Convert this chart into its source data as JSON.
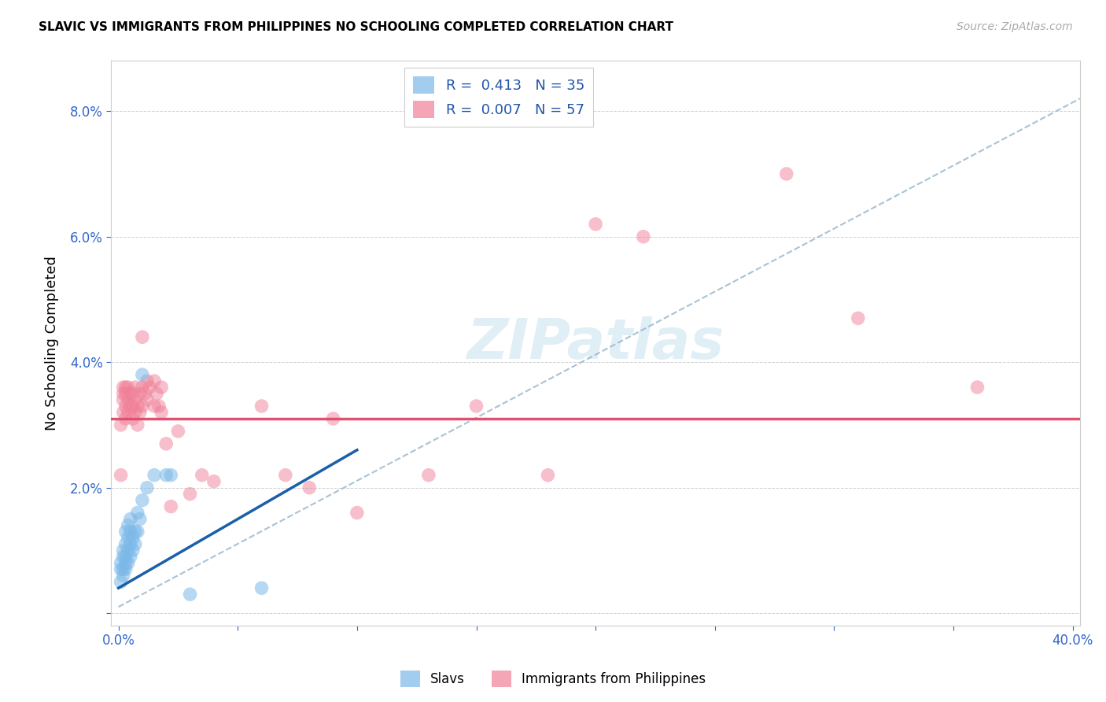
{
  "title": "SLAVIC VS IMMIGRANTS FROM PHILIPPINES NO SCHOOLING COMPLETED CORRELATION CHART",
  "source": "Source: ZipAtlas.com",
  "ylabel": "No Schooling Completed",
  "watermark": "ZIPatlas",
  "xlim": [
    -0.003,
    0.403
  ],
  "ylim": [
    -0.002,
    0.088
  ],
  "slavs_color": "#7bb8e8",
  "philippines_color": "#f08098",
  "trendline_slavs_color": "#1a5faa",
  "trendline_philippines_color": "#e05070",
  "trendline_dashed_color": "#9ab8cc",
  "slavs_scatter": [
    [
      0.001,
      0.005
    ],
    [
      0.001,
      0.007
    ],
    [
      0.001,
      0.008
    ],
    [
      0.002,
      0.006
    ],
    [
      0.002,
      0.007
    ],
    [
      0.002,
      0.009
    ],
    [
      0.002,
      0.01
    ],
    [
      0.003,
      0.007
    ],
    [
      0.003,
      0.008
    ],
    [
      0.003,
      0.009
    ],
    [
      0.003,
      0.011
    ],
    [
      0.003,
      0.013
    ],
    [
      0.004,
      0.008
    ],
    [
      0.004,
      0.01
    ],
    [
      0.004,
      0.012
    ],
    [
      0.004,
      0.014
    ],
    [
      0.005,
      0.009
    ],
    [
      0.005,
      0.011
    ],
    [
      0.005,
      0.013
    ],
    [
      0.005,
      0.015
    ],
    [
      0.006,
      0.01
    ],
    [
      0.006,
      0.012
    ],
    [
      0.007,
      0.011
    ],
    [
      0.007,
      0.013
    ],
    [
      0.008,
      0.013
    ],
    [
      0.008,
      0.016
    ],
    [
      0.009,
      0.015
    ],
    [
      0.01,
      0.018
    ],
    [
      0.01,
      0.038
    ],
    [
      0.012,
      0.02
    ],
    [
      0.015,
      0.022
    ],
    [
      0.02,
      0.022
    ],
    [
      0.022,
      0.022
    ],
    [
      0.03,
      0.003
    ],
    [
      0.06,
      0.004
    ]
  ],
  "philippines_scatter": [
    [
      0.001,
      0.03
    ],
    [
      0.001,
      0.022
    ],
    [
      0.002,
      0.032
    ],
    [
      0.002,
      0.034
    ],
    [
      0.002,
      0.035
    ],
    [
      0.002,
      0.036
    ],
    [
      0.003,
      0.031
    ],
    [
      0.003,
      0.033
    ],
    [
      0.003,
      0.035
    ],
    [
      0.003,
      0.036
    ],
    [
      0.004,
      0.032
    ],
    [
      0.004,
      0.034
    ],
    [
      0.004,
      0.036
    ],
    [
      0.005,
      0.033
    ],
    [
      0.005,
      0.035
    ],
    [
      0.006,
      0.031
    ],
    [
      0.006,
      0.033
    ],
    [
      0.006,
      0.035
    ],
    [
      0.007,
      0.032
    ],
    [
      0.007,
      0.034
    ],
    [
      0.007,
      0.036
    ],
    [
      0.008,
      0.03
    ],
    [
      0.008,
      0.033
    ],
    [
      0.009,
      0.032
    ],
    [
      0.009,
      0.035
    ],
    [
      0.01,
      0.033
    ],
    [
      0.01,
      0.036
    ],
    [
      0.01,
      0.044
    ],
    [
      0.011,
      0.035
    ],
    [
      0.012,
      0.034
    ],
    [
      0.012,
      0.037
    ],
    [
      0.013,
      0.036
    ],
    [
      0.015,
      0.033
    ],
    [
      0.015,
      0.037
    ],
    [
      0.016,
      0.035
    ],
    [
      0.017,
      0.033
    ],
    [
      0.018,
      0.032
    ],
    [
      0.018,
      0.036
    ],
    [
      0.02,
      0.027
    ],
    [
      0.022,
      0.017
    ],
    [
      0.025,
      0.029
    ],
    [
      0.03,
      0.019
    ],
    [
      0.035,
      0.022
    ],
    [
      0.04,
      0.021
    ],
    [
      0.06,
      0.033
    ],
    [
      0.07,
      0.022
    ],
    [
      0.08,
      0.02
    ],
    [
      0.09,
      0.031
    ],
    [
      0.1,
      0.016
    ],
    [
      0.13,
      0.022
    ],
    [
      0.15,
      0.033
    ],
    [
      0.18,
      0.022
    ],
    [
      0.2,
      0.062
    ],
    [
      0.22,
      0.06
    ],
    [
      0.28,
      0.07
    ],
    [
      0.31,
      0.047
    ],
    [
      0.36,
      0.036
    ]
  ],
  "slavs_trendline": [
    [
      0.0,
      0.004
    ],
    [
      0.1,
      0.026
    ]
  ],
  "philippines_trendline": [
    [
      -0.003,
      0.031
    ],
    [
      0.403,
      0.031
    ]
  ],
  "dashed_trendline": [
    [
      0.0,
      0.001
    ],
    [
      0.403,
      0.082
    ]
  ]
}
